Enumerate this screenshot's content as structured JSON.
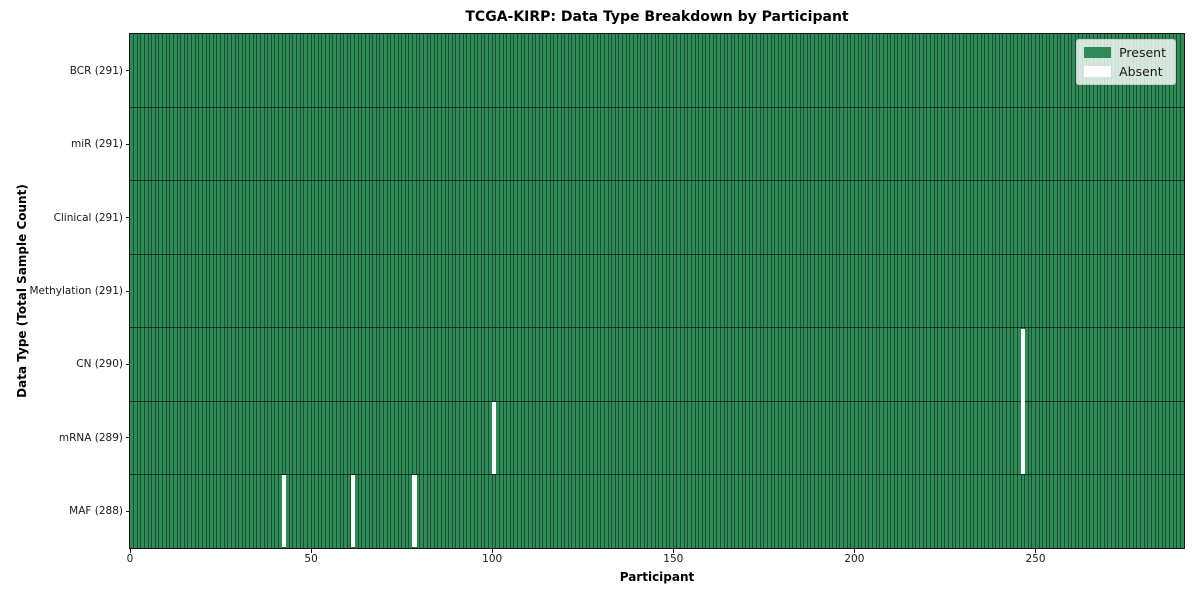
{
  "chart_data": {
    "type": "heatmap",
    "title": "TCGA-KIRP: Data Type Breakdown by Participant",
    "xlabel": "Participant",
    "ylabel": "Data Type (Total Sample Count)",
    "xlim": [
      0,
      291
    ],
    "n_participants": 291,
    "x_tick_labels": [
      "0",
      "50",
      "100",
      "150",
      "200",
      "250"
    ],
    "x_tick_values": [
      0,
      50,
      100,
      150,
      200,
      250
    ],
    "grid": false,
    "legend": {
      "position": "upper right",
      "items": [
        {
          "label": "Present",
          "color": "#2e8b57"
        },
        {
          "label": "Absent",
          "color": "#ffffff"
        }
      ]
    },
    "rows": [
      {
        "label": "BCR (291)",
        "data_type": "BCR",
        "present_count": 291,
        "absent_participants": []
      },
      {
        "label": "miR (291)",
        "data_type": "miR",
        "present_count": 291,
        "absent_participants": []
      },
      {
        "label": "Clinical (291)",
        "data_type": "Clinical",
        "present_count": 291,
        "absent_participants": []
      },
      {
        "label": "Methylation (291)",
        "data_type": "Methylation",
        "present_count": 291,
        "absent_participants": []
      },
      {
        "label": "CN (290)",
        "data_type": "CN",
        "present_count": 290,
        "absent_participants": [
          246
        ]
      },
      {
        "label": "mRNA (289)",
        "data_type": "mRNA",
        "present_count": 289,
        "absent_participants": [
          100,
          246
        ]
      },
      {
        "label": "MAF (288)",
        "data_type": "MAF",
        "present_count": 288,
        "absent_participants": [
          42,
          61,
          78
        ]
      }
    ],
    "colors": {
      "present": "#2e8b57",
      "absent": "#ffffff",
      "spine": "#151515",
      "background": "#ffffff"
    }
  }
}
